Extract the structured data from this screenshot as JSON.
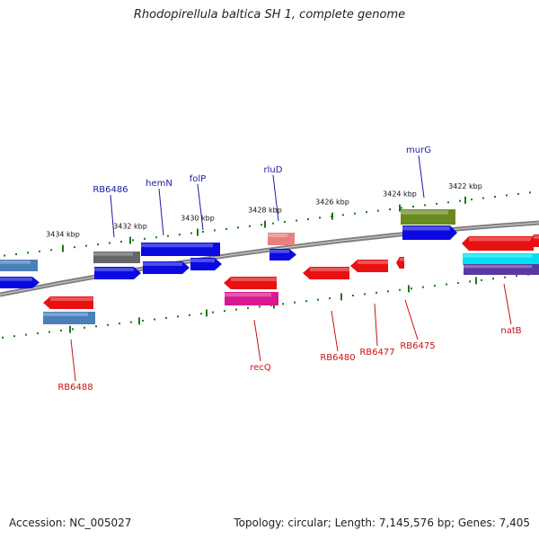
{
  "title": "Rhodopirellula baltica SH 1, complete genome",
  "footer": {
    "accession": "Accession: NC_005027",
    "summary": "Topology: circular; Length: 7,145,576 bp; Genes: 7,405"
  },
  "scale_labels": [
    "3434 kbp",
    "3432 kbp",
    "3430 kbp",
    "3428 kbp",
    "3426 kbp",
    "3424 kbp",
    "3422 kbp"
  ],
  "gene_labels_top": [
    "RB6486",
    "hemN",
    "folP",
    "rluD",
    "murG"
  ],
  "gene_labels_bottom": [
    "RB6488",
    "recQ",
    "RB6480",
    "RB6477",
    "RB6475",
    "natB"
  ],
  "colors": {
    "backbone": "#808080",
    "tick": "#1a7a1a",
    "label_top": "#1a1aa6",
    "label_bottom": "#cc1010",
    "blue": "#0a0ae0",
    "steel": "#4a7fb8",
    "gray": "#666666",
    "red": "#e81010",
    "pink": "#e88080",
    "magenta": "#d81890",
    "olive": "#6b8a1e",
    "cyan": "#00e0f0",
    "purple": "#5a3aa0"
  }
}
